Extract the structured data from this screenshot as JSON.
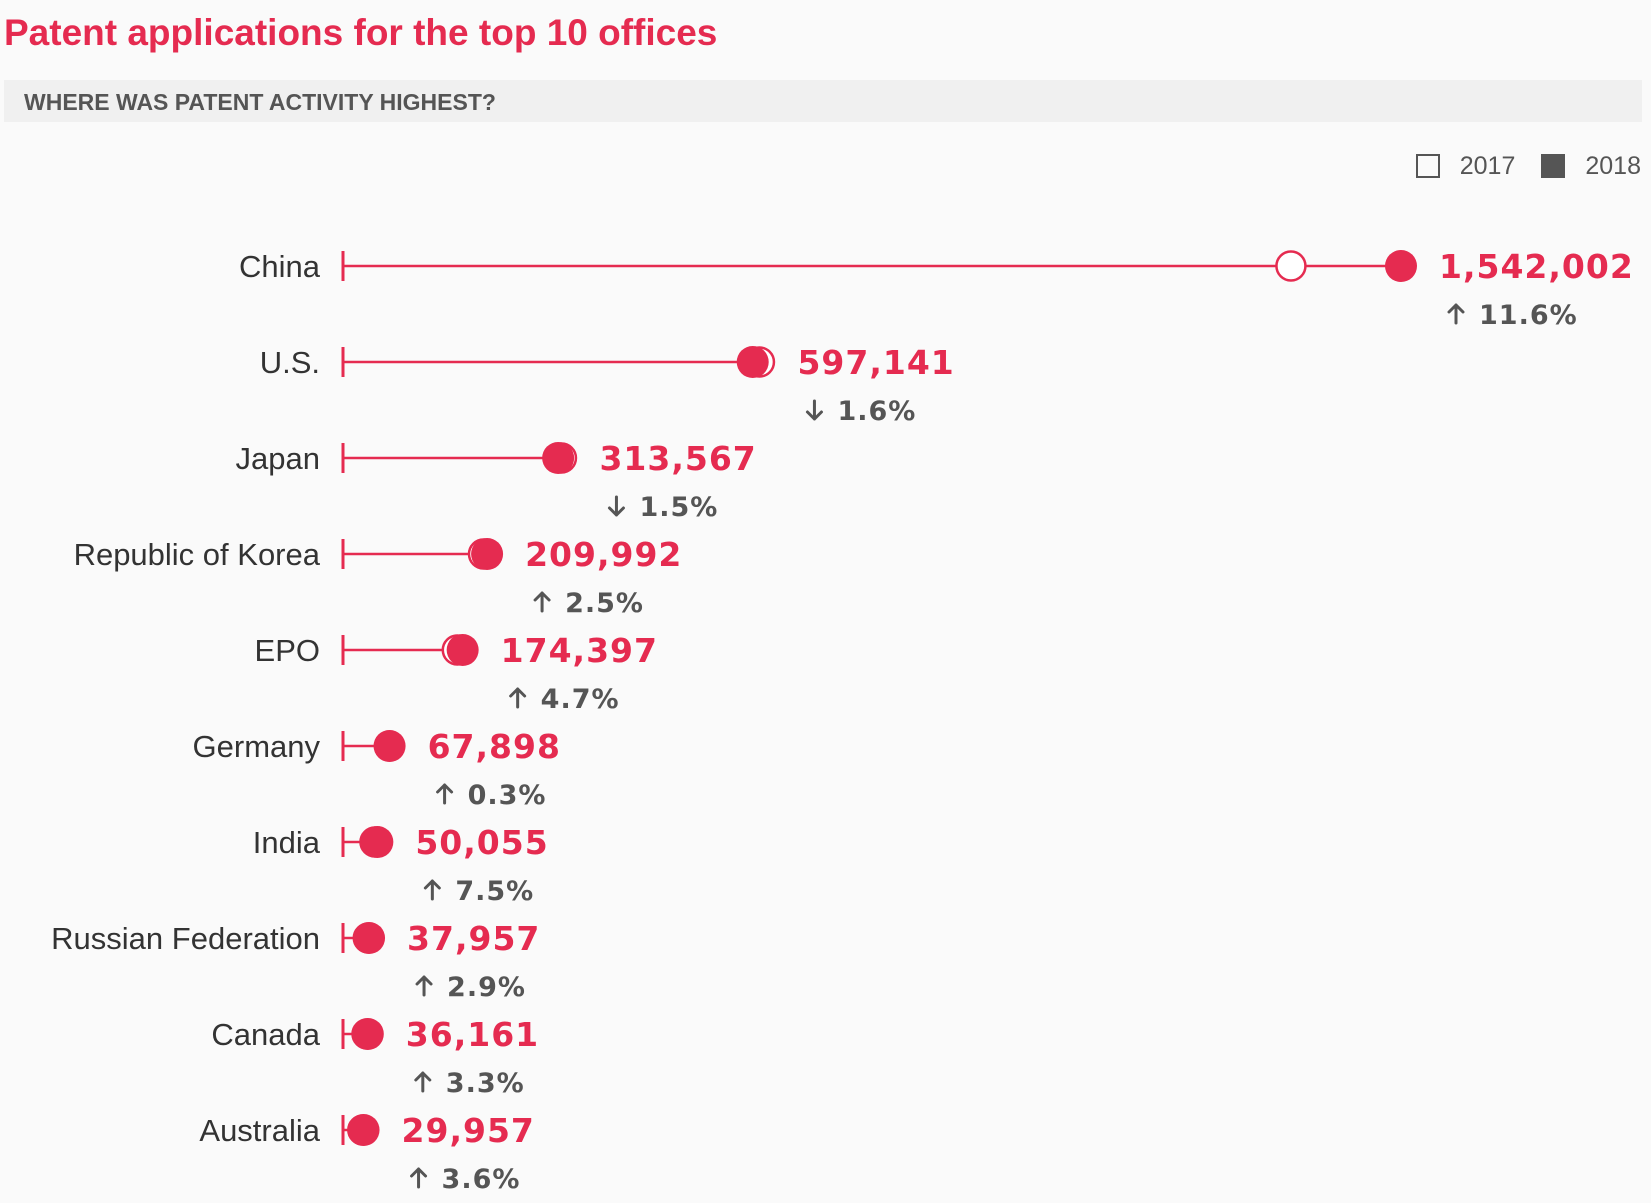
{
  "header": {
    "title": "Patent applications for the top 10 offices",
    "subtitle": "WHERE WAS PATENT ACTIVITY HIGHEST?"
  },
  "legend": [
    {
      "label": "2017",
      "style": "open"
    },
    {
      "label": "2018",
      "style": "filled"
    }
  ],
  "colors": {
    "accent": "#e52b50",
    "muted": "#555555",
    "text": "#333333",
    "background": "#fafafa"
  },
  "chart_data": {
    "type": "dot-range",
    "title": "Patent applications for the top 10 offices",
    "subtitle": "WHERE WAS PATENT ACTIVITY HIGHEST?",
    "xlim": [
      0,
      1600000
    ],
    "grid": false,
    "legend_position": "top-right",
    "series": [
      {
        "name": "2017",
        "values": [
          1381594,
          606956,
          318381,
          204775,
          166585,
          67712,
          46582,
          36883,
          35022,
          28906
        ]
      },
      {
        "name": "2018",
        "values": [
          1542002,
          597141,
          313567,
          209992,
          174397,
          67898,
          50055,
          37957,
          36161,
          29957
        ]
      }
    ],
    "categories": [
      "China",
      "U.S.",
      "Japan",
      "Republic of Korea",
      "EPO",
      "Germany",
      "India",
      "Russian Federation",
      "Canada",
      "Australia"
    ],
    "value_labels": [
      "1,542,002",
      "597,141",
      "313,567",
      "209,992",
      "174,397",
      "67,898",
      "50,055",
      "37,957",
      "36,161",
      "29,957"
    ],
    "change_labels": [
      "11.6%",
      "1.6%",
      "1.5%",
      "2.5%",
      "4.7%",
      "0.3%",
      "7.5%",
      "2.9%",
      "3.3%",
      "3.6%"
    ],
    "change_direction": [
      "up",
      "down",
      "down",
      "up",
      "up",
      "up",
      "up",
      "up",
      "up",
      "up"
    ]
  }
}
